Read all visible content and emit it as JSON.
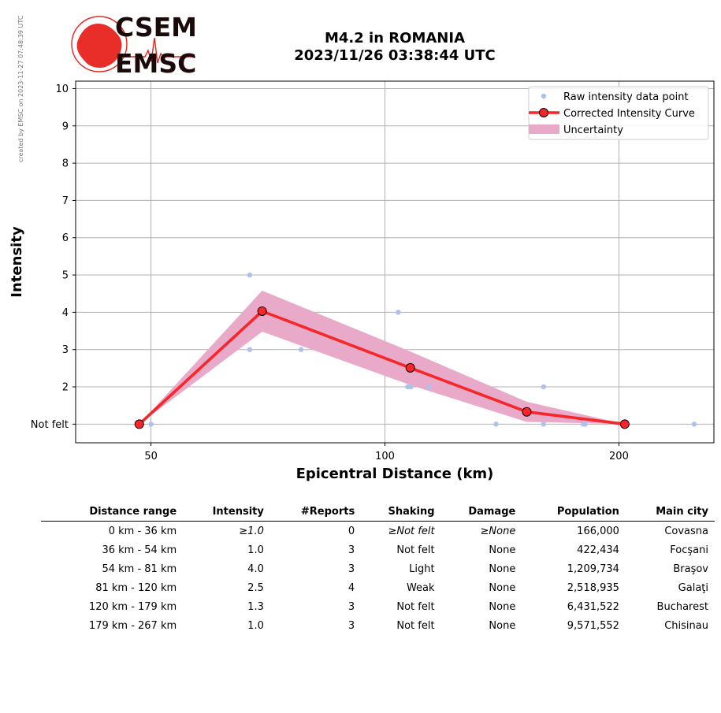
{
  "side_note": "created by EMSC on 2023-11-27 07:48:39 UTC",
  "logo": {
    "line1": "CSEM",
    "line2": "EMSC",
    "color": "#e8231d"
  },
  "title": {
    "line1": "M4.2 in ROMANIA",
    "line2": "2023/11/26 03:38:44 UTC"
  },
  "chart_data": {
    "type": "line",
    "xlabel": "Epicentral Distance (km)",
    "ylabel": "Intensity",
    "xscale": "log",
    "xlim": [
      40,
      265
    ],
    "ylim": [
      0.5,
      10.2
    ],
    "xticks": [
      50,
      100,
      200
    ],
    "xtick_labels": [
      "50",
      "100",
      "200"
    ],
    "yticks": [
      1,
      2,
      3,
      4,
      5,
      6,
      7,
      8,
      9,
      10
    ],
    "ytick_labels": [
      "Not felt",
      "2",
      "3",
      "4",
      "5",
      "6",
      "7",
      "8",
      "9",
      "10"
    ],
    "grid": true,
    "legend_position": "top-right",
    "series": [
      {
        "name": "Raw intensity data point",
        "kind": "scatter",
        "color": "#aec0ec",
        "points": [
          [
            48,
            1
          ],
          [
            50,
            1
          ],
          [
            67,
            5
          ],
          [
            67,
            3
          ],
          [
            78,
            3
          ],
          [
            104,
            4
          ],
          [
            107,
            2
          ],
          [
            108,
            2
          ],
          [
            114,
            2
          ],
          [
            139,
            1
          ],
          [
            160,
            2
          ],
          [
            160,
            1
          ],
          [
            180,
            1
          ],
          [
            181,
            1
          ],
          [
            250,
            1
          ]
        ]
      },
      {
        "name": "Corrected Intensity Curve",
        "kind": "line",
        "color": "#f7262a",
        "points": [
          [
            48.3,
            1.0
          ],
          [
            69.5,
            4.03
          ],
          [
            107.8,
            2.51
          ],
          [
            152.2,
            1.33
          ],
          [
            203.5,
            1.0
          ]
        ]
      },
      {
        "name": "Uncertainty",
        "kind": "band",
        "color": "#e8aac8",
        "x": [
          48.3,
          69.5,
          107.8,
          152.2,
          203.5
        ],
        "upper": [
          1.0,
          4.58,
          2.95,
          1.6,
          1.0
        ],
        "lower": [
          1.0,
          3.48,
          2.05,
          1.06,
          1.0
        ]
      }
    ]
  },
  "table": {
    "headers": [
      "Distance range",
      "Intensity",
      "#Reports",
      "Shaking",
      "Damage",
      "Population",
      "Main city"
    ],
    "rows": [
      [
        "0 km -   36 km",
        "≥1.0",
        "0",
        "≥Not felt",
        "≥None",
        "166,000",
        "Covasna"
      ],
      [
        "36 km -   54 km",
        "1.0",
        "3",
        "Not felt",
        "None",
        "422,434",
        "Focşani"
      ],
      [
        "54 km -   81 km",
        "4.0",
        "3",
        "Light",
        "None",
        "1,209,734",
        "Braşov"
      ],
      [
        "81 km -  120 km",
        "2.5",
        "4",
        "Weak",
        "None",
        "2,518,935",
        "Galaţi"
      ],
      [
        "120 km -  179 km",
        "1.3",
        "3",
        "Not felt",
        "None",
        "6,431,522",
        "Bucharest"
      ],
      [
        "179 km -  267 km",
        "1.0",
        "3",
        "Not felt",
        "None",
        "9,571,552",
        "Chisinau"
      ]
    ]
  }
}
